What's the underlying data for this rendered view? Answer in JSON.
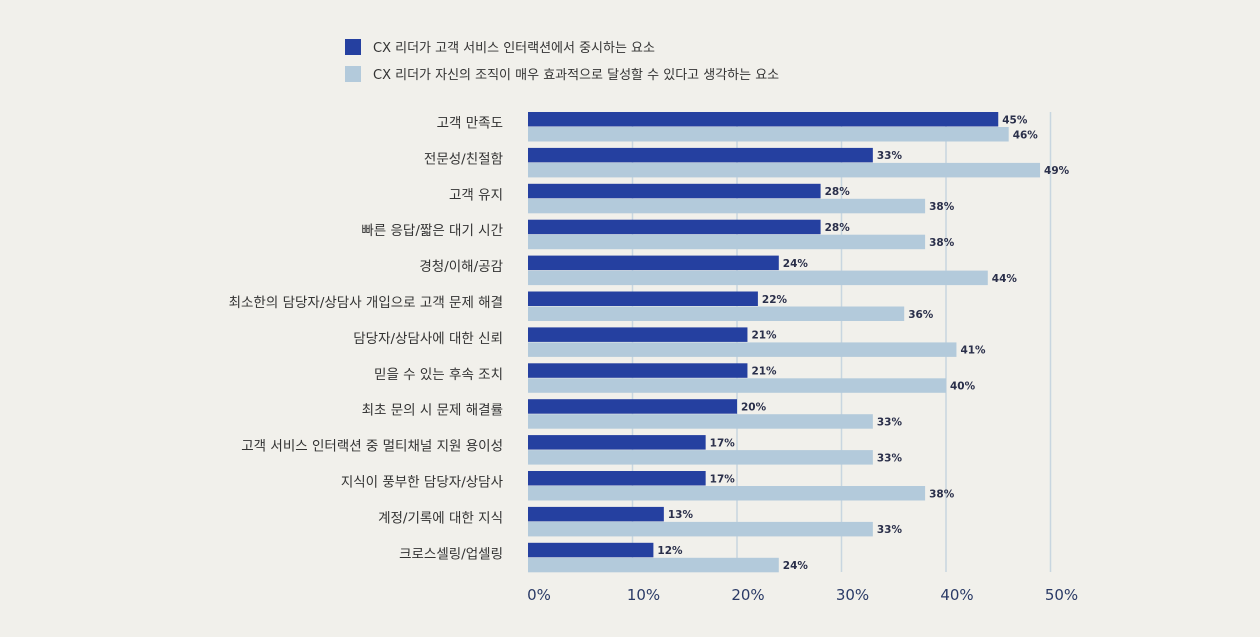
{
  "chart_data": {
    "type": "bar",
    "orientation": "horizontal",
    "categories": [
      "고객 만족도",
      "전문성/친절함",
      "고객 유지",
      "빠른 응답/짧은 대기 시간",
      "경청/이해/공감",
      "최소한의 담당자/상담사 개입으로 고객 문제 해결",
      "담당자/상담사에 대한 신뢰",
      "믿을 수 있는 후속 조치",
      "최초 문의 시 문제 해결률",
      "고객 서비스 인터랙션 중 멀티채널 지원 용이성",
      "지식이 풍부한 담당자/상담사",
      "계정/기록에 대한 지식",
      "크로스셀링/업셀링"
    ],
    "series": [
      {
        "name": "CX 리더가 고객 서비스 인터랙션에서 중시하는 요소",
        "color": "#2540a0",
        "values": [
          45,
          33,
          28,
          28,
          24,
          22,
          21,
          21,
          20,
          17,
          17,
          13,
          12
        ]
      },
      {
        "name": "CX 리더가 자신의 조직이 매우 효과적으로 달성할 수 있다고 생각하는 요소",
        "color": "#b3cadb",
        "values": [
          46,
          49,
          38,
          38,
          44,
          36,
          41,
          40,
          33,
          33,
          38,
          33,
          24
        ]
      }
    ],
    "value_suffix": "%",
    "xlim": [
      0,
      50
    ],
    "xticks": [
      "0%",
      "10%",
      "20%",
      "30%",
      "40%",
      "50%"
    ],
    "grid": true,
    "gridline_color": "#c8d6e0",
    "legend_position": "top"
  }
}
